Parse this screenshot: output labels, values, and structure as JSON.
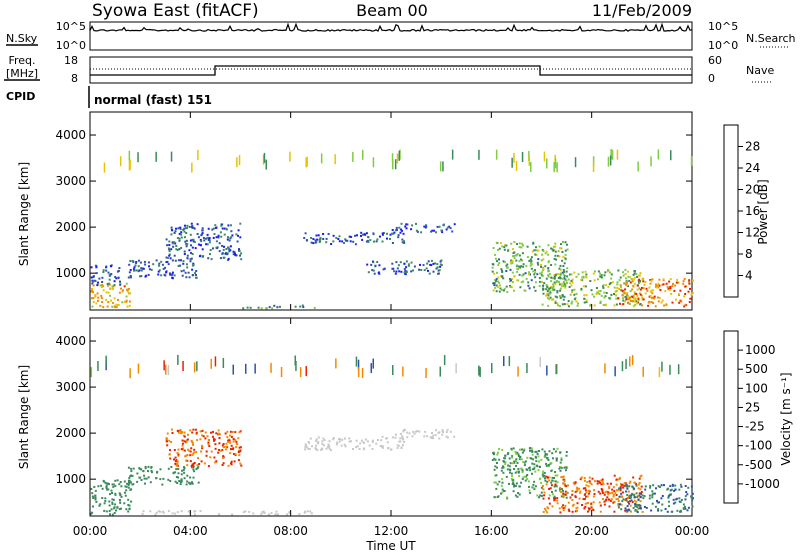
{
  "header": {
    "station": "Syowa East (fitACF)",
    "beam": "Beam 00",
    "date": "11/Feb/2009"
  },
  "noise_strip": {
    "left_label": "N.Sky",
    "right_label": "N.Search",
    "tick_top": "10^5",
    "tick_bottom": "10^0"
  },
  "freq_strip": {
    "left_label_line1": "Freq.",
    "left_label_line2": "[MHz]",
    "right_label": "Nave",
    "tick_left_top": "18",
    "tick_left_bottom": "8",
    "tick_right_top": "60",
    "tick_right_bottom": "0"
  },
  "cpid": {
    "label": "CPID",
    "mode": "normal (fast) 151"
  },
  "chart_data": [
    {
      "type": "heatmap",
      "name": "power-panel",
      "ylabel": "Slant Range [km]",
      "ylim": [
        200,
        4500
      ],
      "yticks": [
        1000,
        2000,
        3000,
        4000
      ],
      "colorbar_label": "Power [dB]",
      "colorbar_ticks": [
        "4",
        "8",
        "12",
        "16",
        "20",
        "24",
        "28"
      ],
      "colorbar_colors": [
        "#1a1aff",
        "#2d53a8",
        "#3a8a5c",
        "#7fcc3f",
        "#e8c400",
        "#f28a00",
        "#e82000",
        "#d80000"
      ],
      "regions": [
        {
          "t0": 0.0,
          "t1": 1.6,
          "r0": 250,
          "r1": 800,
          "v": 20
        },
        {
          "t0": 0.0,
          "t1": 1.2,
          "r0": 750,
          "r1": 1200,
          "v": 6
        },
        {
          "t0": 1.5,
          "t1": 4.3,
          "r0": 900,
          "r1": 1300,
          "v": 6
        },
        {
          "t0": 3.0,
          "t1": 6.0,
          "r0": 1300,
          "r1": 2100,
          "v": 6
        },
        {
          "t0": 6.0,
          "t1": 9.0,
          "r0": 250,
          "r1": 320,
          "v": 10
        },
        {
          "t0": 8.5,
          "t1": 12.5,
          "r0": 1650,
          "r1": 1900,
          "v": 6
        },
        {
          "t0": 12.0,
          "t1": 14.5,
          "r0": 1900,
          "r1": 2100,
          "v": 6
        },
        {
          "t0": 11.0,
          "t1": 14.0,
          "r0": 1000,
          "r1": 1300,
          "v": 6
        },
        {
          "t0": 16.0,
          "t1": 19.0,
          "r0": 600,
          "r1": 1700,
          "v": 12
        },
        {
          "t0": 18.0,
          "t1": 22.0,
          "r0": 300,
          "r1": 1100,
          "v": 14
        },
        {
          "t0": 21.0,
          "t1": 24.0,
          "r0": 300,
          "r1": 900,
          "v": 22
        }
      ]
    },
    {
      "type": "heatmap",
      "name": "velocity-panel",
      "ylabel": "Slant Range [km]",
      "ylim": [
        200,
        4500
      ],
      "yticks": [
        1000,
        2000,
        3000,
        4000
      ],
      "colorbar_label": "Velocity [m s⁻¹]",
      "colorbar_ticks": [
        "1000",
        "500",
        "100",
        "25",
        "-25",
        "-100",
        "-500",
        "-1000"
      ],
      "colorbar_colors": [
        "#1a1aff",
        "#2d53a8",
        "#3a8a5c",
        "#7fcc3f",
        "#c8c8c8",
        "#e8c400",
        "#f28a00",
        "#e82000",
        "#d80000"
      ],
      "regions": [
        {
          "t0": 0.0,
          "t1": 1.6,
          "r0": 250,
          "r1": 1000,
          "v": 150
        },
        {
          "t0": 1.5,
          "t1": 4.3,
          "r0": 900,
          "r1": 1300,
          "v": 200
        },
        {
          "t0": 3.0,
          "t1": 6.0,
          "r0": 1300,
          "r1": 2100,
          "v": -300
        },
        {
          "t0": 2.0,
          "t1": 9.0,
          "r0": 250,
          "r1": 330,
          "v": 0
        },
        {
          "t0": 8.5,
          "t1": 12.5,
          "r0": 1650,
          "r1": 1950,
          "v": 0
        },
        {
          "t0": 12.0,
          "t1": 14.5,
          "r0": 1900,
          "r1": 2100,
          "v": 0
        },
        {
          "t0": 16.0,
          "t1": 19.0,
          "r0": 600,
          "r1": 1700,
          "v": 80
        },
        {
          "t0": 18.0,
          "t1": 22.0,
          "r0": 300,
          "r1": 1100,
          "v": -300
        },
        {
          "t0": 21.0,
          "t1": 24.0,
          "r0": 300,
          "r1": 900,
          "v": 300
        }
      ]
    }
  ],
  "time_axis": {
    "ticks": [
      "00:00",
      "04:00",
      "08:00",
      "12:00",
      "16:00",
      "20:00",
      "00:00"
    ],
    "xlabel": "Time UT"
  }
}
